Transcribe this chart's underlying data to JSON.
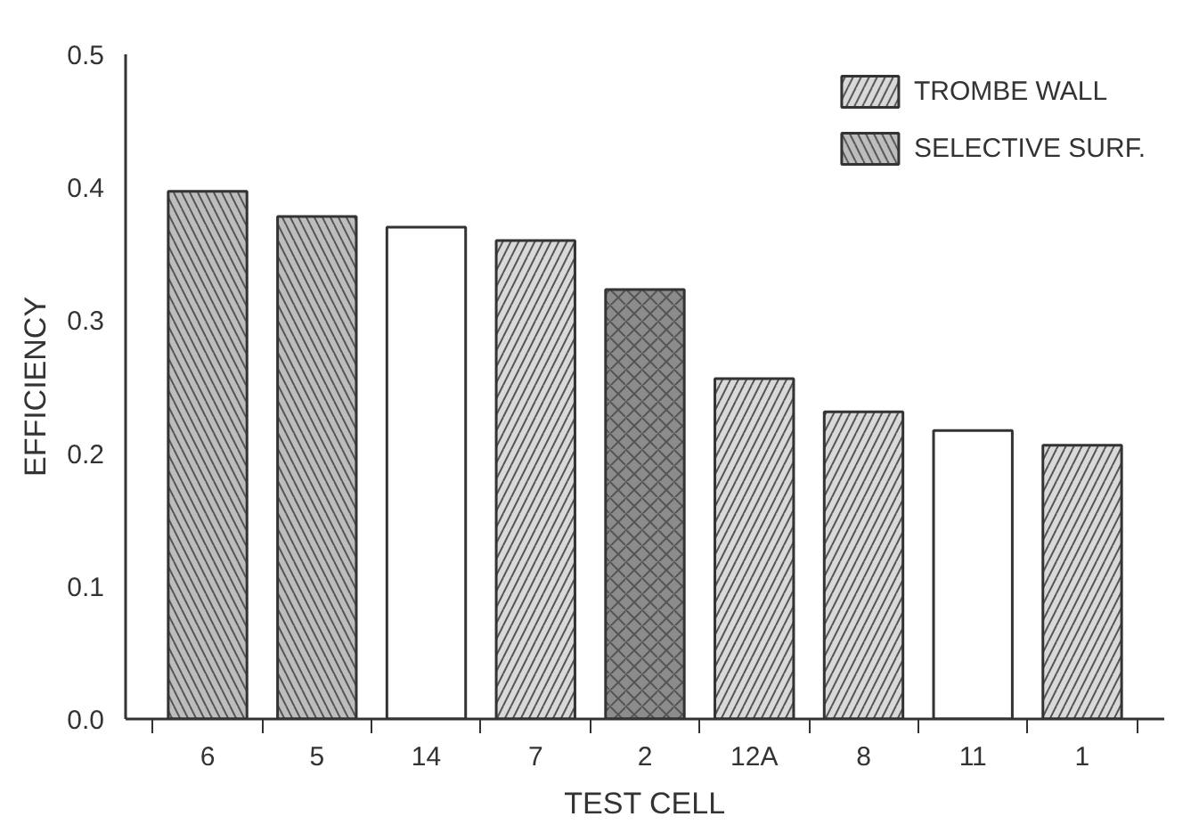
{
  "chart_data": {
    "type": "bar",
    "xlabel": "TEST CELL",
    "ylabel": "EFFICIENCY",
    "categories": [
      "6",
      "5",
      "14",
      "7",
      "2",
      "12A",
      "8",
      "11",
      "1"
    ],
    "series": [
      {
        "name": "TROMBE WALL",
        "color": "#d9d9d9",
        "values": [
          null,
          null,
          null,
          0.36,
          null,
          0.256,
          0.231,
          null,
          0.206
        ]
      },
      {
        "name": "SELECTIVE SURF.",
        "color": "#bdbdbd",
        "values": [
          0.397,
          0.378,
          null,
          null,
          null,
          null,
          null,
          null,
          null
        ]
      },
      {
        "color": "#ffffff",
        "values": [
          null,
          null,
          0.37,
          null,
          null,
          null,
          null,
          0.217,
          null
        ]
      },
      {
        "color": "#8c8c8c",
        "values": [
          null,
          null,
          null,
          null,
          0.323,
          null,
          null,
          null,
          null
        ]
      }
    ],
    "ylim": [
      0,
      0.5
    ],
    "yticks": [
      {
        "value": 0,
        "label": "0.0"
      },
      0.1,
      0.2,
      0.3,
      0.4,
      0.5
    ],
    "grid": false,
    "legend": "top right"
  }
}
